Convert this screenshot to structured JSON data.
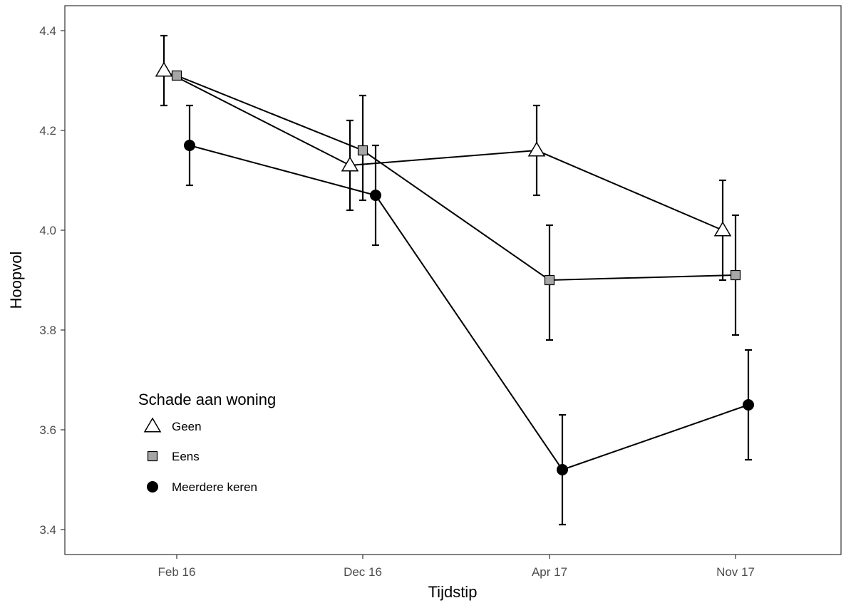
{
  "chart_data": {
    "type": "line",
    "xlabel": "Tijdstip",
    "ylabel": "Hoopvol",
    "categories": [
      "Feb 16",
      "Dec 16",
      "Apr 17",
      "Nov 17"
    ],
    "ylim": [
      3.35,
      4.45
    ],
    "yticks": [
      3.4,
      3.6,
      3.8,
      4.0,
      4.2,
      4.4
    ],
    "ytick_labels": [
      "3.4",
      "3.6",
      "3.8",
      "4.0",
      "4.2",
      "4.4"
    ],
    "grid": false,
    "legend": {
      "title": "Schade aan woning",
      "position": "bottom-left"
    },
    "series": [
      {
        "name": "Geen",
        "marker": "triangle-open",
        "fill": "#ffffff",
        "values": [
          4.32,
          4.13,
          4.16,
          4.0
        ],
        "err_low": [
          4.25,
          4.04,
          4.07,
          3.9
        ],
        "err_high": [
          4.39,
          4.22,
          4.25,
          4.1
        ]
      },
      {
        "name": "Eens",
        "marker": "square",
        "fill": "#a6a6a6",
        "values": [
          4.31,
          4.16,
          3.9,
          3.91
        ],
        "err_low": [
          4.31,
          4.06,
          3.78,
          3.79
        ],
        "err_high": [
          4.31,
          4.27,
          4.01,
          4.03
        ]
      },
      {
        "name": "Meerdere keren",
        "marker": "circle",
        "fill": "#000000",
        "values": [
          4.17,
          4.07,
          3.52,
          3.65
        ],
        "err_low": [
          4.09,
          3.97,
          3.41,
          3.54
        ],
        "err_high": [
          4.25,
          4.17,
          3.63,
          3.76
        ]
      }
    ]
  }
}
